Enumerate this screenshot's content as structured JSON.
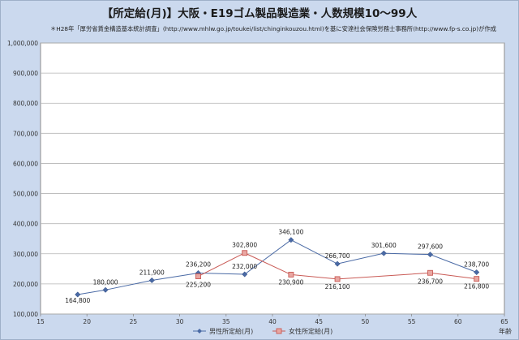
{
  "chart_data": {
    "type": "line",
    "title": "【所定給(月)】大阪・E19ゴム製品製造業・人数規模10～99人",
    "note": "＊H28年「厚労省賃金構造基本統計調査」(http://www.mhlw.go.jp/toukei/list/chinginkouzou.html)を基に安達社会保険労務士事務所(http://www.fp-s.co.jp)が作成",
    "xlabel": "年齢",
    "ylabel": "",
    "xlim": [
      15,
      65
    ],
    "ylim": [
      100000,
      1000000
    ],
    "xticks": [
      15,
      20,
      25,
      30,
      35,
      40,
      45,
      50,
      55,
      60,
      65
    ],
    "yticks": [
      100000,
      200000,
      300000,
      400000,
      500000,
      600000,
      700000,
      800000,
      900000,
      1000000
    ],
    "ytick_labels": [
      "100,000",
      "200,000",
      "300,000",
      "400,000",
      "500,000",
      "600,000",
      "700,000",
      "800,000",
      "900,000",
      "1,000,000"
    ],
    "grid": true,
    "legend": "bottom",
    "series": [
      {
        "name": "男性所定給(月)",
        "color": "#4a6aa5",
        "marker": "diamond",
        "x": [
          19,
          22,
          27,
          32,
          37,
          42,
          47,
          52,
          57,
          62
        ],
        "y": [
          164800,
          180000,
          211900,
          236200,
          232000,
          346100,
          266700,
          301600,
          297600,
          238700
        ],
        "labels": [
          "164,800",
          "180,000",
          "211,900",
          "236,200",
          "232,000",
          "346,100",
          "266,700",
          "301,600",
          "297,600",
          "238,700"
        ]
      },
      {
        "name": "女性所定給(月)",
        "color": "#c95a55",
        "marker": "square",
        "x": [
          32,
          37,
          42,
          47,
          57,
          62
        ],
        "y": [
          225200,
          302800,
          230900,
          216100,
          236700,
          216800
        ],
        "labels": [
          "225,200",
          "302,800",
          "230,900",
          "216,100",
          "236,700",
          "216,800"
        ]
      }
    ]
  }
}
